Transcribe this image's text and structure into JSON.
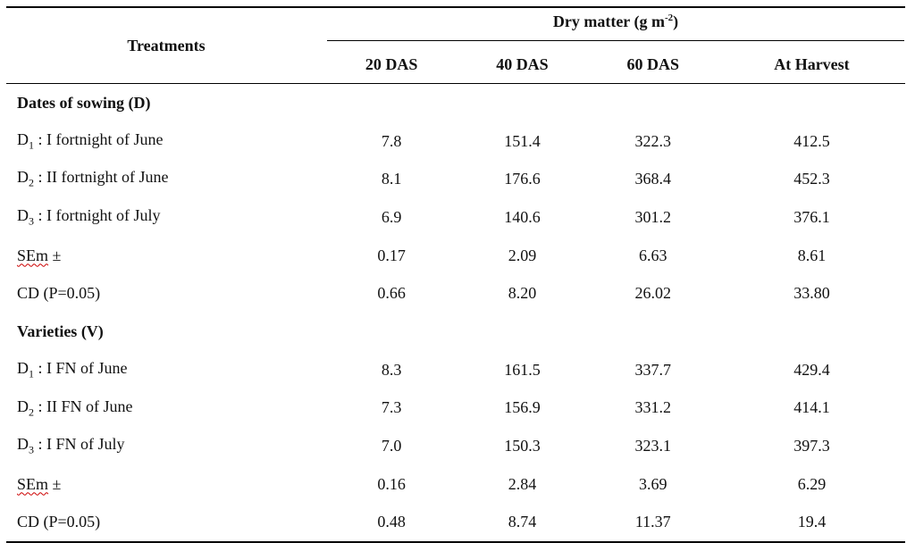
{
  "header": {
    "treatments": "Treatments",
    "group_label": "Dry matter (g m",
    "group_exp": "-2",
    "group_close": ")",
    "columns": [
      "20 DAS",
      "40 DAS",
      "60 DAS",
      "At Harvest"
    ]
  },
  "sections": [
    {
      "title": "Dates of sowing (D)",
      "rows": [
        {
          "pre": "D",
          "sub": "1",
          "post": " : I fortnight of June",
          "values": [
            "7.8",
            "151.4",
            "322.3",
            "412.5"
          ]
        },
        {
          "pre": "D",
          "sub": "2",
          "post": " : II fortnight of June",
          "values": [
            "8.1",
            "176.6",
            "368.4",
            "452.3"
          ]
        },
        {
          "pre": "D",
          "sub": "3",
          "post": " : I fortnight of July",
          "values": [
            "6.9",
            "140.6",
            "301.2",
            "376.1"
          ]
        },
        {
          "pre": "SEm",
          "sub": "",
          "post": " ±",
          "values": [
            "0.17",
            "2.09",
            "6.63",
            "8.61"
          ]
        },
        {
          "pre": "CD (P=0.05)",
          "sub": "",
          "post": "",
          "values": [
            "0.66",
            "8.20",
            "26.02",
            "33.80"
          ]
        }
      ]
    },
    {
      "title": "Varieties (V)",
      "rows": [
        {
          "pre": "D",
          "sub": "1",
          "post": " : I FN of June",
          "values": [
            "8.3",
            "161.5",
            "337.7",
            "429.4"
          ]
        },
        {
          "pre": "D",
          "sub": "2",
          "post": " : II FN of June",
          "values": [
            "7.3",
            "156.9",
            "331.2",
            "414.1"
          ]
        },
        {
          "pre": "D",
          "sub": "3",
          "post": " : I FN of July",
          "values": [
            "7.0",
            "150.3",
            "323.1",
            "397.3"
          ]
        },
        {
          "pre": "SEm",
          "sub": "",
          "post": " ±",
          "values": [
            "0.16",
            "2.84",
            "3.69",
            "6.29"
          ]
        },
        {
          "pre": "CD (P=0.05)",
          "sub": "",
          "post": "",
          "values": [
            "0.48",
            "8.74",
            "11.37",
            "19.4"
          ]
        }
      ]
    }
  ]
}
